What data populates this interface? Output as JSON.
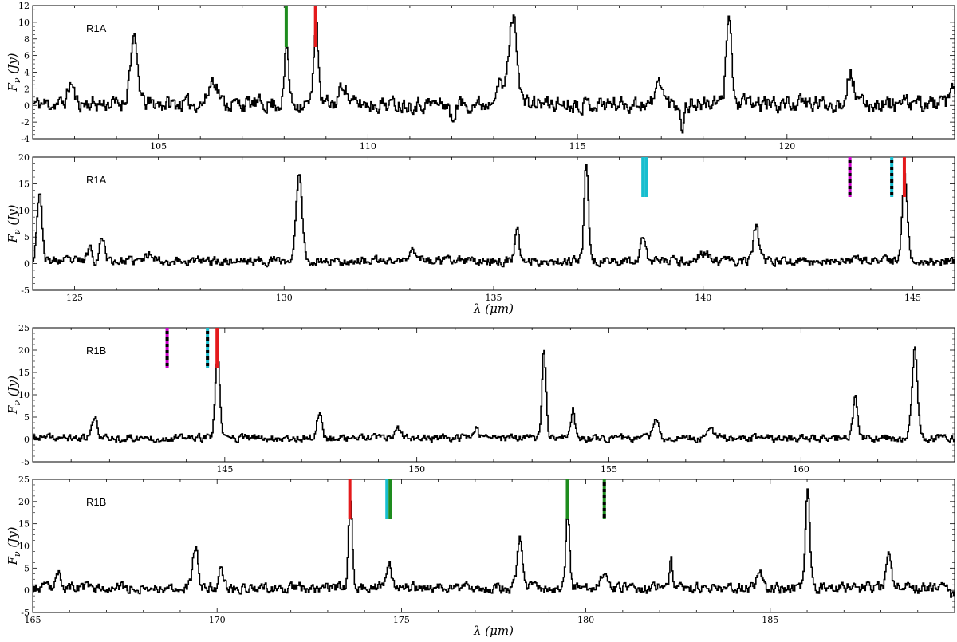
{
  "figure": {
    "ylabel": "F_ν (Jy)",
    "xlabel": "λ (μm)"
  },
  "chart_data": [
    {
      "type": "line",
      "panel_label": "R1A",
      "xlim": [
        102,
        124
      ],
      "ylim": [
        -4,
        12
      ],
      "xticks": [
        105,
        110,
        115,
        120
      ],
      "yticks": [
        -4,
        -2,
        0,
        2,
        4,
        6,
        8,
        10,
        12
      ],
      "ylabel": "F_ν (Jy)",
      "xlabel": "",
      "line_color": "#000000",
      "baseline": 0.2,
      "noise": 0.9,
      "seed": 11,
      "peaks": [
        [
          102.9,
          2.5,
          0.07
        ],
        [
          104.4,
          7.5,
          0.09
        ],
        [
          108.05,
          6.8,
          0.05
        ],
        [
          108.75,
          10.5,
          0.05
        ],
        [
          113.45,
          10.5,
          0.1
        ],
        [
          118.6,
          11.5,
          0.06
        ],
        [
          121.5,
          3.8,
          0.08
        ],
        [
          116.95,
          2.8,
          0.08
        ],
        [
          109.4,
          2.5,
          0.08
        ],
        [
          106.3,
          3.0,
          0.1
        ],
        [
          112.0,
          -2.2,
          0.05
        ],
        [
          117.5,
          -2.8,
          0.04
        ],
        [
          113.1,
          2.5,
          0.1
        ],
        [
          123.95,
          1.8,
          0.06
        ]
      ],
      "markers": [
        {
          "x": 108.05,
          "colors": [
            "#1e8c1e"
          ],
          "dashed": false
        },
        {
          "x": 108.75,
          "colors": [
            "#e41a1c"
          ],
          "dashed": false
        }
      ]
    },
    {
      "type": "line",
      "panel_label": "R1A",
      "xlim": [
        124,
        146
      ],
      "ylim": [
        -5,
        20
      ],
      "xticks": [
        125,
        130,
        135,
        140,
        145
      ],
      "yticks": [
        -5,
        0,
        5,
        10,
        15,
        20
      ],
      "ylabel": "F_ν (Jy)",
      "xlabel": "λ (μm)",
      "line_color": "#000000",
      "baseline": 0.5,
      "noise": 0.8,
      "seed": 23,
      "peaks": [
        [
          124.15,
          12.8,
          0.06
        ],
        [
          125.35,
          2.8,
          0.05
        ],
        [
          125.65,
          4.5,
          0.06
        ],
        [
          130.35,
          16.5,
          0.07
        ],
        [
          135.55,
          5.5,
          0.05
        ],
        [
          137.2,
          18.5,
          0.05
        ],
        [
          138.55,
          5.0,
          0.06
        ],
        [
          141.25,
          6.5,
          0.06
        ],
        [
          144.8,
          16.5,
          0.06
        ],
        [
          133.1,
          2.0,
          0.1
        ],
        [
          126.8,
          1.5,
          0.1
        ],
        [
          140.0,
          1.5,
          0.1
        ]
      ],
      "markers": [
        {
          "x": 138.6,
          "colors": [
            "#17becf",
            "#17becf"
          ],
          "dashed": false
        },
        {
          "x": 143.5,
          "colors": [
            "#cc00cc"
          ],
          "dashed": true
        },
        {
          "x": 144.5,
          "colors": [
            "#17becf"
          ],
          "dashed": true
        },
        {
          "x": 144.8,
          "colors": [
            "#e41a1c"
          ],
          "dashed": false
        }
      ]
    },
    {
      "type": "line",
      "panel_label": "R1B",
      "xlim": [
        140,
        164
      ],
      "ylim": [
        -5,
        25
      ],
      "xticks": [
        145,
        150,
        155,
        160
      ],
      "yticks": [
        -5,
        0,
        5,
        10,
        15,
        20,
        25
      ],
      "ylabel": "F_ν (Jy)",
      "xlabel": "",
      "line_color": "#000000",
      "baseline": 0.3,
      "noise": 0.8,
      "seed": 37,
      "peaks": [
        [
          141.6,
          4.5,
          0.07
        ],
        [
          144.8,
          18.0,
          0.06
        ],
        [
          147.45,
          6.0,
          0.06
        ],
        [
          153.3,
          20.5,
          0.05
        ],
        [
          154.05,
          6.5,
          0.05
        ],
        [
          156.2,
          4.0,
          0.07
        ],
        [
          161.4,
          9.0,
          0.06
        ],
        [
          162.95,
          20.0,
          0.07
        ],
        [
          151.5,
          2.5,
          0.08
        ],
        [
          149.5,
          2.0,
          0.06
        ],
        [
          157.6,
          2.5,
          0.08
        ]
      ],
      "markers": [
        {
          "x": 143.5,
          "colors": [
            "#cc00cc"
          ],
          "dashed": true
        },
        {
          "x": 144.55,
          "colors": [
            "#17becf"
          ],
          "dashed": true
        },
        {
          "x": 144.8,
          "colors": [
            "#e41a1c"
          ],
          "dashed": false
        }
      ]
    },
    {
      "type": "line",
      "panel_label": "R1B",
      "xlim": [
        165,
        190
      ],
      "ylim": [
        -5,
        25
      ],
      "xticks": [
        165,
        170,
        175,
        180,
        185
      ],
      "yticks": [
        -5,
        0,
        5,
        10,
        15,
        20,
        25
      ],
      "ylabel": "F_ν (Jy)",
      "xlabel": "λ (μm)",
      "line_color": "#000000",
      "baseline": 0.6,
      "noise": 1.1,
      "seed": 53,
      "peaks": [
        [
          165.7,
          3.5,
          0.06
        ],
        [
          169.4,
          9.0,
          0.07
        ],
        [
          170.1,
          4.5,
          0.06
        ],
        [
          173.6,
          20.0,
          0.05
        ],
        [
          174.65,
          5.5,
          0.06
        ],
        [
          178.2,
          11.5,
          0.07
        ],
        [
          179.5,
          17.5,
          0.05
        ],
        [
          180.5,
          4.5,
          0.07
        ],
        [
          182.3,
          6.0,
          0.04
        ],
        [
          186.0,
          21.0,
          0.06
        ],
        [
          188.2,
          8.5,
          0.06
        ],
        [
          184.7,
          4.0,
          0.08
        ],
        [
          189.95,
          -2.0,
          0.08
        ]
      ],
      "markers": [
        {
          "x": 173.6,
          "colors": [
            "#e41a1c"
          ],
          "dashed": false
        },
        {
          "x": 174.65,
          "colors": [
            "#17becf",
            "#1e8c1e"
          ],
          "dashed": false
        },
        {
          "x": 179.5,
          "colors": [
            "#1e8c1e"
          ],
          "dashed": false
        },
        {
          "x": 180.5,
          "colors": [
            "#1e8c1e"
          ],
          "dashed": true
        }
      ]
    }
  ]
}
